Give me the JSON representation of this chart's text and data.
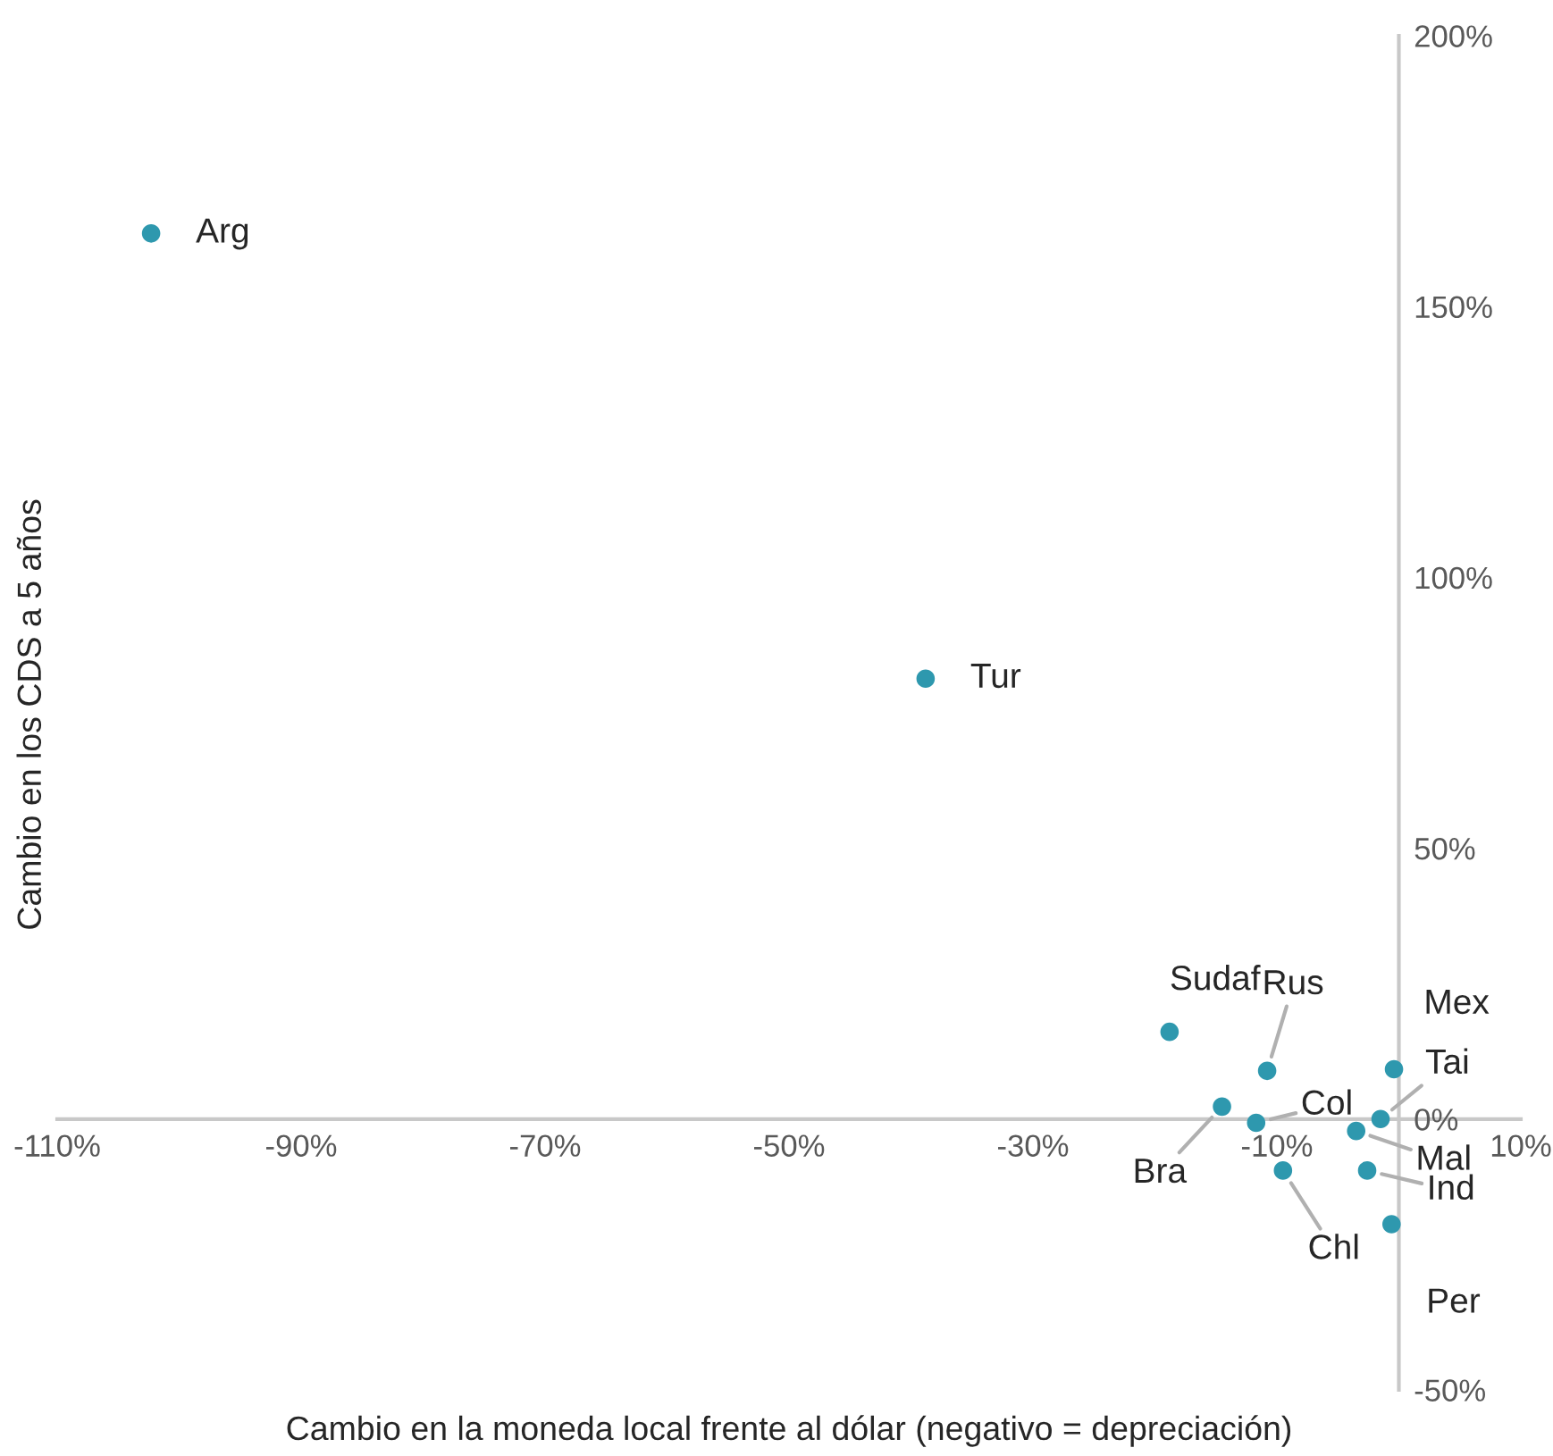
{
  "chart_data": {
    "type": "scatter",
    "xlabel": "Cambio en la moneda local frente al dólar (negativo = depreciación)",
    "ylabel": "Cambio en los CDS a 5 años",
    "x": [
      -102.3,
      -38.8,
      -18.8,
      -10.8,
      -14.5,
      -11.7,
      -9.5,
      -0.4,
      -1.5,
      -3.5,
      -2.6,
      -0.6
    ],
    "values": [
      163.5,
      81.3,
      16.1,
      8.9,
      2.3,
      -0.7,
      -9.5,
      9.2,
      0.0,
      -2.2,
      -9.5,
      -19.4
    ],
    "color": "#2e98ae",
    "marker": "circle",
    "grid": false,
    "legend": false,
    "xlim": [
      -110,
      10
    ],
    "xticks": [
      {
        "value": -110,
        "label": "-110%"
      },
      {
        "value": -90,
        "label": "-90%"
      },
      {
        "value": -70,
        "label": "-70%"
      },
      {
        "value": -50,
        "label": "-50%"
      },
      {
        "value": -30,
        "label": "-30%"
      },
      {
        "value": -10,
        "label": "-10%"
      },
      {
        "value": 10,
        "label": "10%"
      }
    ],
    "ylim": [
      -50,
      200
    ],
    "yticks": [
      {
        "value": -50,
        "label": "-50%"
      },
      {
        "value": 0,
        "label": "0%"
      },
      {
        "value": 50,
        "label": "50%"
      },
      {
        "value": 100,
        "label": "100%"
      },
      {
        "value": 150,
        "label": "150%"
      },
      {
        "value": 200,
        "label": "200%"
      }
    ],
    "annotations": [
      {
        "text": "Arg",
        "x": -102.3,
        "y": 163.5
      },
      {
        "text": "Tur",
        "x": -38.8,
        "y": 81.3
      },
      {
        "text": "Sudaf",
        "x": -18.8,
        "y": 16.1
      },
      {
        "text": "Rus",
        "x": -10.8,
        "y": 8.9
      },
      {
        "text": "Bra",
        "x": -14.5,
        "y": 2.3
      },
      {
        "text": "Col",
        "x": -11.7,
        "y": -0.7
      },
      {
        "text": "Chl",
        "x": -9.5,
        "y": -9.5
      },
      {
        "text": "Mex",
        "x": -0.4,
        "y": 9.2
      },
      {
        "text": "Tai",
        "x": -1.5,
        "y": 0.0
      },
      {
        "text": "Mal",
        "x": -3.5,
        "y": -2.2
      },
      {
        "text": "Ind",
        "x": -2.6,
        "y": -9.5
      },
      {
        "text": "Per",
        "x": -0.6,
        "y": -19.4
      }
    ]
  }
}
